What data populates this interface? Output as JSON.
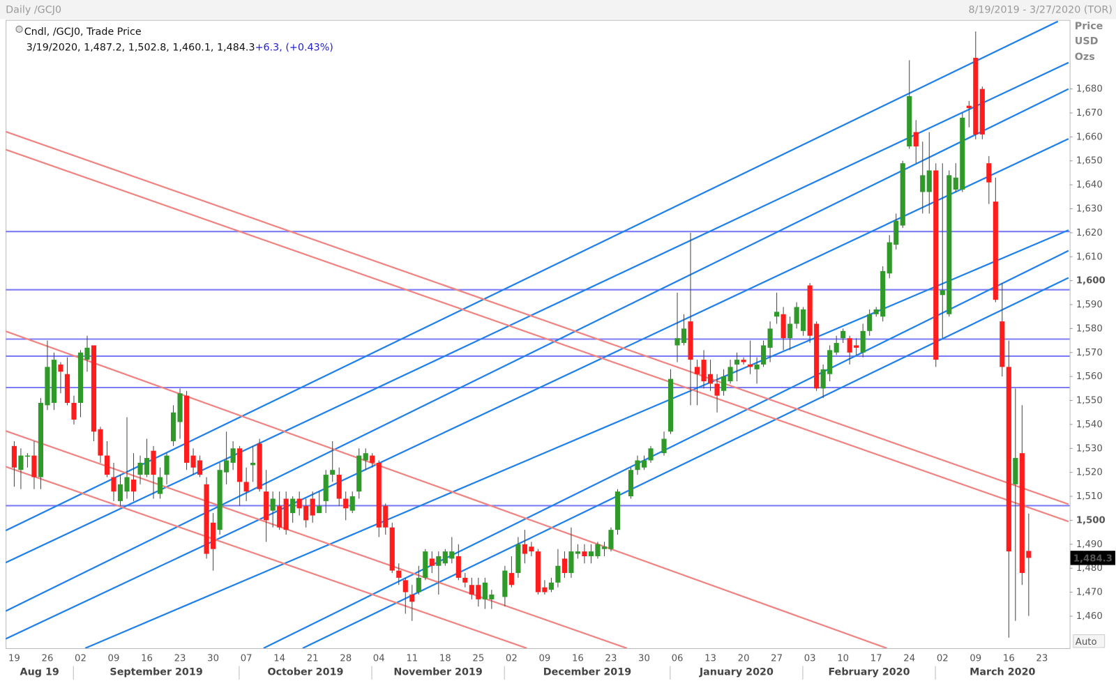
{
  "chart_data": {
    "type": "candlestick",
    "title": "Daily /GCJ0",
    "subtitle": "8/19/2019 - 3/27/2020 (TOR)",
    "legend_title": "Cndl, /GCJ0, Trade Price",
    "legend_values": "3/19/2020, 1,487.2, 1,502.8, 1,460.1, 1,484.3",
    "legend_change": "+6.3, (+0.43%)",
    "axis_labels": [
      "Price",
      "USD",
      "Ozs"
    ],
    "scale_mode": "Auto",
    "last_price_label": "1,484.3",
    "up_color": "#2f9a2a",
    "down_color": "#ff1c1c",
    "categories": [
      "19",
      null,
      null,
      null,
      null,
      "26",
      null,
      null,
      null,
      null,
      "02",
      null,
      null,
      null,
      null,
      "09",
      null,
      null,
      null,
      null,
      "16",
      null,
      null,
      null,
      null,
      "23",
      null,
      null,
      null,
      null,
      "30",
      null,
      null,
      null,
      null,
      "07",
      null,
      null,
      null,
      null,
      "14",
      null,
      null,
      null,
      null,
      "21",
      null,
      null,
      null,
      null,
      "28",
      null,
      null,
      null,
      null,
      "04",
      null,
      null,
      null,
      null,
      "11",
      null,
      null,
      null,
      null,
      "18",
      null,
      null,
      null,
      null,
      "25",
      null,
      null,
      null,
      null,
      "02",
      null,
      null,
      null,
      null,
      "09",
      null,
      null,
      null,
      null,
      "16",
      null,
      null,
      null,
      null,
      "23",
      null,
      null,
      null,
      null,
      "30",
      null,
      null,
      null,
      null,
      "06",
      null,
      null,
      null,
      null,
      "13",
      null,
      null,
      null,
      null,
      "20",
      null,
      null,
      null,
      null,
      "27",
      null,
      null,
      null,
      null,
      "03",
      null,
      null,
      null,
      null,
      "10",
      null,
      null,
      null,
      null,
      "17",
      null,
      null,
      null,
      null,
      "24",
      null,
      null,
      null,
      null,
      "02",
      null,
      null,
      null,
      null,
      "09",
      null,
      null,
      null,
      null,
      "16",
      null,
      null,
      null,
      null,
      "23",
      null,
      null,
      null,
      null
    ],
    "months": [
      "Aug 19",
      "September 2019",
      "October 2019",
      "November 2019",
      "December 2019",
      "January 2020",
      "February 2020",
      "March 2020"
    ],
    "open": [
      1531,
      1521,
      1527,
      1527,
      1518,
      1548,
      1549,
      1565,
      1561,
      1549,
      1549,
      1567,
      1573,
      1538,
      1527,
      1518,
      1508,
      1512,
      1517,
      1519,
      1519,
      1529,
      1511,
      1519,
      1533,
      1541,
      1552,
      1527,
      1525,
      1515,
      1499,
      1496,
      1520,
      1524,
      1530,
      1516,
      1523,
      1532,
      1512,
      1504,
      1506,
      1509,
      1503,
      1509,
      1506,
      1509,
      1503,
      1508,
      1519,
      1519,
      1509,
      1504,
      1512,
      1525,
      1527,
      1524,
      1506,
      1497,
      1479,
      1475,
      1469,
      1470,
      1476,
      1484,
      1481,
      1482,
      1484,
      1485,
      1476,
      1473,
      1473,
      1467,
      1467,
      null,
      1468,
      1478,
      1478,
      1490,
      1489,
      1487,
      1472,
      1471,
      1474,
      1484,
      1478,
      1486,
      1487,
      1485,
      1485,
      1488,
      1488,
      1496,
      null,
      1510,
      1521,
      1522,
      1525,
      null,
      1528,
      1537,
      1573,
      1574,
      1583,
      1564,
      1567,
      1561,
      1557,
      1554,
      1558,
      1565,
      1567,
      1565,
      1563,
      1565,
      1572,
      1585,
      1586,
      1576,
      1582,
      1579,
      1598,
      1582,
      1555,
      1561,
      1570,
      1576,
      1576,
      1573,
      1570,
      1579,
      1586,
      1585,
      1603,
      1615,
      1623,
      1656,
      1662,
      1637,
      1637,
      1646,
      1594,
      1586,
      1638,
      1638,
      1673,
      1693,
      1680,
      1649,
      1633,
      1583,
      1564,
      1515,
      1528,
      1487.2,
      null,
      null,
      null,
      null,
      null,
      null
    ],
    "high": [
      1533,
      1530,
      1528,
      1533,
      1551,
      1575,
      1570,
      1566,
      1568,
      1552,
      1571,
      1577,
      1573,
      1539,
      1533,
      1524,
      1519,
      1543,
      1528,
      1527,
      1534,
      1531,
      1522,
      1528,
      1548,
      1555,
      1554,
      1530,
      1527,
      1518,
      1503,
      1524,
      1537,
      1533,
      1531,
      1522,
      1531,
      1534,
      1521,
      1512,
      1512,
      1512,
      1510,
      1512,
      1509,
      1512,
      1512,
      1521,
      1533,
      1522,
      1512,
      1512,
      1530,
      1530,
      1528,
      1525,
      1507,
      1499,
      1482,
      1476,
      1473,
      1481,
      1488,
      1487,
      1487,
      1488,
      1493,
      1490,
      1478,
      1476,
      1476,
      1476,
      1471,
      null,
      1481,
      1485,
      1493,
      1496,
      1491,
      1488,
      1475,
      1476,
      1488,
      1487,
      1497,
      1490,
      1490,
      1490,
      1491,
      1491,
      1497,
      1513,
      null,
      1522,
      1527,
      1527,
      1531,
      null,
      1537,
      1563,
      1595,
      1586,
      1620,
      1567,
      1571,
      1567,
      1561,
      1563,
      1567,
      1570,
      1568,
      1575,
      1568,
      1575,
      1583,
      1595,
      1589,
      1585,
      1591,
      1589,
      1599,
      1583,
      1565,
      1573,
      1577,
      1580,
      1577,
      1576,
      1582,
      1588,
      1589,
      1606,
      1619,
      1628,
      1650,
      1692,
      1667,
      1658,
      1662,
      1649,
      1649,
      1646,
      1649,
      1670,
      1675,
      1704,
      1681,
      1652,
      1643,
      1599,
      1575,
      1555,
      1548,
      1502.8,
      null,
      null,
      null,
      null,
      null,
      null
    ],
    "low": [
      1514,
      1513,
      1522,
      1513,
      1513,
      1546,
      1546,
      1553,
      1548,
      1540,
      1543,
      1562,
      1533,
      1524,
      1518,
      1508,
      1506,
      1509,
      1508,
      1515,
      1518,
      1509,
      1509,
      1515,
      1531,
      1534,
      1521,
      1519,
      1518,
      1484,
      1479,
      1494,
      1515,
      1521,
      1506,
      1508,
      1516,
      1512,
      1491,
      1497,
      1496,
      1494,
      1499,
      1502,
      1497,
      1499,
      1503,
      1503,
      1516,
      1506,
      1500,
      1503,
      1509,
      1521,
      1522,
      1493,
      1494,
      1478,
      1473,
      1461,
      1458,
      1469,
      1475,
      1478,
      1469,
      1481,
      1482,
      1475,
      1472,
      1467,
      1464,
      1463,
      1463,
      null,
      1464,
      1472,
      1476,
      1482,
      1485,
      1469,
      1469,
      1470,
      1472,
      1476,
      1476,
      1484,
      1482,
      1482,
      1484,
      1485,
      1487,
      1494,
      null,
      1509,
      1519,
      1521,
      1524,
      null,
      1527,
      1536,
      1566,
      1573,
      1548,
      1548,
      1555,
      1554,
      1545,
      1552,
      1557,
      1558,
      1565,
      1561,
      1557,
      1564,
      1566,
      1582,
      1571,
      1571,
      1580,
      1577,
      1574,
      1554,
      1551,
      1558,
      1569,
      1574,
      1565,
      1569,
      1568,
      1577,
      1585,
      1583,
      1601,
      1613,
      1622,
      1655,
      1649,
      1628,
      1628,
      1564,
      1576,
      1585,
      1637,
      1637,
      1664,
      1659,
      1659,
      1632,
      1591,
      1560,
      1451,
      1458,
      1473,
      1460.1,
      null,
      null,
      null,
      null,
      null,
      null
    ],
    "close": [
      1522,
      1527,
      1527,
      1518,
      1549,
      1564,
      1567,
      1562,
      1549,
      1542,
      1570,
      1572,
      1537,
      1527,
      1519,
      1512,
      1515,
      1518,
      1512,
      1524,
      1526,
      1519,
      1518,
      1527,
      1545,
      1553,
      1524,
      1522,
      1519,
      1486,
      1488,
      1521,
      1525,
      1530,
      1516,
      1512,
      1524,
      1513,
      1500,
      1509,
      1497,
      1496,
      1509,
      1505,
      1500,
      1502,
      1506,
      1519,
      1521,
      1509,
      1505,
      1510,
      1527,
      1528,
      1524,
      1497,
      1497,
      1479,
      1476,
      1470,
      1466,
      1476,
      1487,
      1481,
      1485,
      1487,
      1487,
      1476,
      1474,
      1469,
      1467,
      1474,
      1469,
      null,
      1479,
      1473,
      1490,
      1486,
      1487,
      1470,
      1470,
      1474,
      1481,
      1478,
      1487,
      1487,
      1485,
      1487,
      1490,
      1489,
      1496,
      1512,
      null,
      1521,
      1525,
      1525,
      1530,
      null,
      1534,
      1559,
      1576,
      1580,
      1567,
      1561,
      1558,
      1557,
      1552,
      1560,
      1564,
      1567,
      1566,
      1564,
      1565,
      1573,
      1580,
      1587,
      1576,
      1582,
      1589,
      1588,
      1577,
      1555,
      1563,
      1571,
      1574,
      1579,
      1570,
      1572,
      1579,
      1586,
      1588,
      1604,
      1616,
      1625,
      1649,
      1677,
      1656,
      1644,
      1646,
      1567,
      1596,
      1644,
      1643,
      1668,
      1672,
      1661,
      1661,
      1641,
      1592,
      1564,
      1487,
      1526,
      1478,
      1484.3,
      null,
      null,
      null,
      null,
      null,
      null
    ],
    "ylim": [
      1446.6,
      1708.8
    ],
    "yticks": [
      {
        "value": 1460,
        "label": "1,460"
      },
      {
        "value": 1470,
        "label": "1,470"
      },
      {
        "value": 1480,
        "label": "1,480"
      },
      {
        "value": 1490,
        "label": "1,490"
      },
      {
        "value": 1500,
        "label": "1,500"
      },
      {
        "value": 1510,
        "label": "1,510"
      },
      {
        "value": 1520,
        "label": "1,520"
      },
      {
        "value": 1530,
        "label": "1,530"
      },
      {
        "value": 1540,
        "label": "1,540"
      },
      {
        "value": 1550,
        "label": "1,550"
      },
      {
        "value": 1560,
        "label": "1,560"
      },
      {
        "value": 1570,
        "label": "1,570"
      },
      {
        "value": 1580,
        "label": "1,580"
      },
      {
        "value": 1590,
        "label": "1,590"
      },
      {
        "value": 1600,
        "label": "1,600"
      },
      {
        "value": 1610,
        "label": "1,610"
      },
      {
        "value": 1620,
        "label": "1,620"
      },
      {
        "value": 1630,
        "label": "1,630"
      },
      {
        "value": 1640,
        "label": "1,640"
      },
      {
        "value": 1650,
        "label": "1,650"
      },
      {
        "value": 1660,
        "label": "1,660"
      },
      {
        "value": 1670,
        "label": "1,670"
      },
      {
        "value": 1680,
        "label": "1,680"
      }
    ],
    "price_lines": [
      1620.5,
      1596.2,
      1575.6,
      1568.5,
      1555.4,
      1506.1
    ],
    "price_line_color": "#7c7cf6",
    "trend_lines": [
      {
        "color": "#1f80ea",
        "x": [
          -1.3,
          157.4
        ],
        "y": [
          1495.7,
          1708.2
        ]
      },
      {
        "color": "#1f80ea",
        "x": [
          -1.3,
          159.0
        ],
        "y": [
          1482.3,
          1691.0
        ]
      },
      {
        "color": "#1f80ea",
        "x": [
          -1.3,
          159.0
        ],
        "y": [
          1462.1,
          1680.0
        ]
      },
      {
        "color": "#1f80ea",
        "x": [
          -1.3,
          159.0
        ],
        "y": [
          1450.5,
          1659.2
        ]
      },
      {
        "color": "#1f80ea",
        "x": [
          10.7,
          159.0
        ],
        "y": [
          1446.6,
          1621.1
        ]
      },
      {
        "color": "#1f80ea",
        "x": [
          37.6,
          159.0
        ],
        "y": [
          1446.6,
          1612.5
        ]
      },
      {
        "color": "#1f80ea",
        "x": [
          43.5,
          159.0
        ],
        "y": [
          1446.6,
          1601.2
        ]
      },
      {
        "color": "#f08482",
        "x": [
          -1.3,
          159.0
        ],
        "y": [
          1662.2,
          1506.7
        ]
      },
      {
        "color": "#f08482",
        "x": [
          -1.3,
          159.0
        ],
        "y": [
          1654.7,
          1499.5
        ]
      },
      {
        "color": "#f08482",
        "x": [
          -1.3,
          131.6
        ],
        "y": [
          1578.9,
          1446.6
        ]
      },
      {
        "color": "#f08482",
        "x": [
          -1.3,
          92.4
        ],
        "y": [
          1537.3,
          1446.6
        ]
      },
      {
        "color": "#f08482",
        "x": [
          -1.3,
          77.3
        ],
        "y": [
          1522.4,
          1446.6
        ]
      }
    ]
  }
}
